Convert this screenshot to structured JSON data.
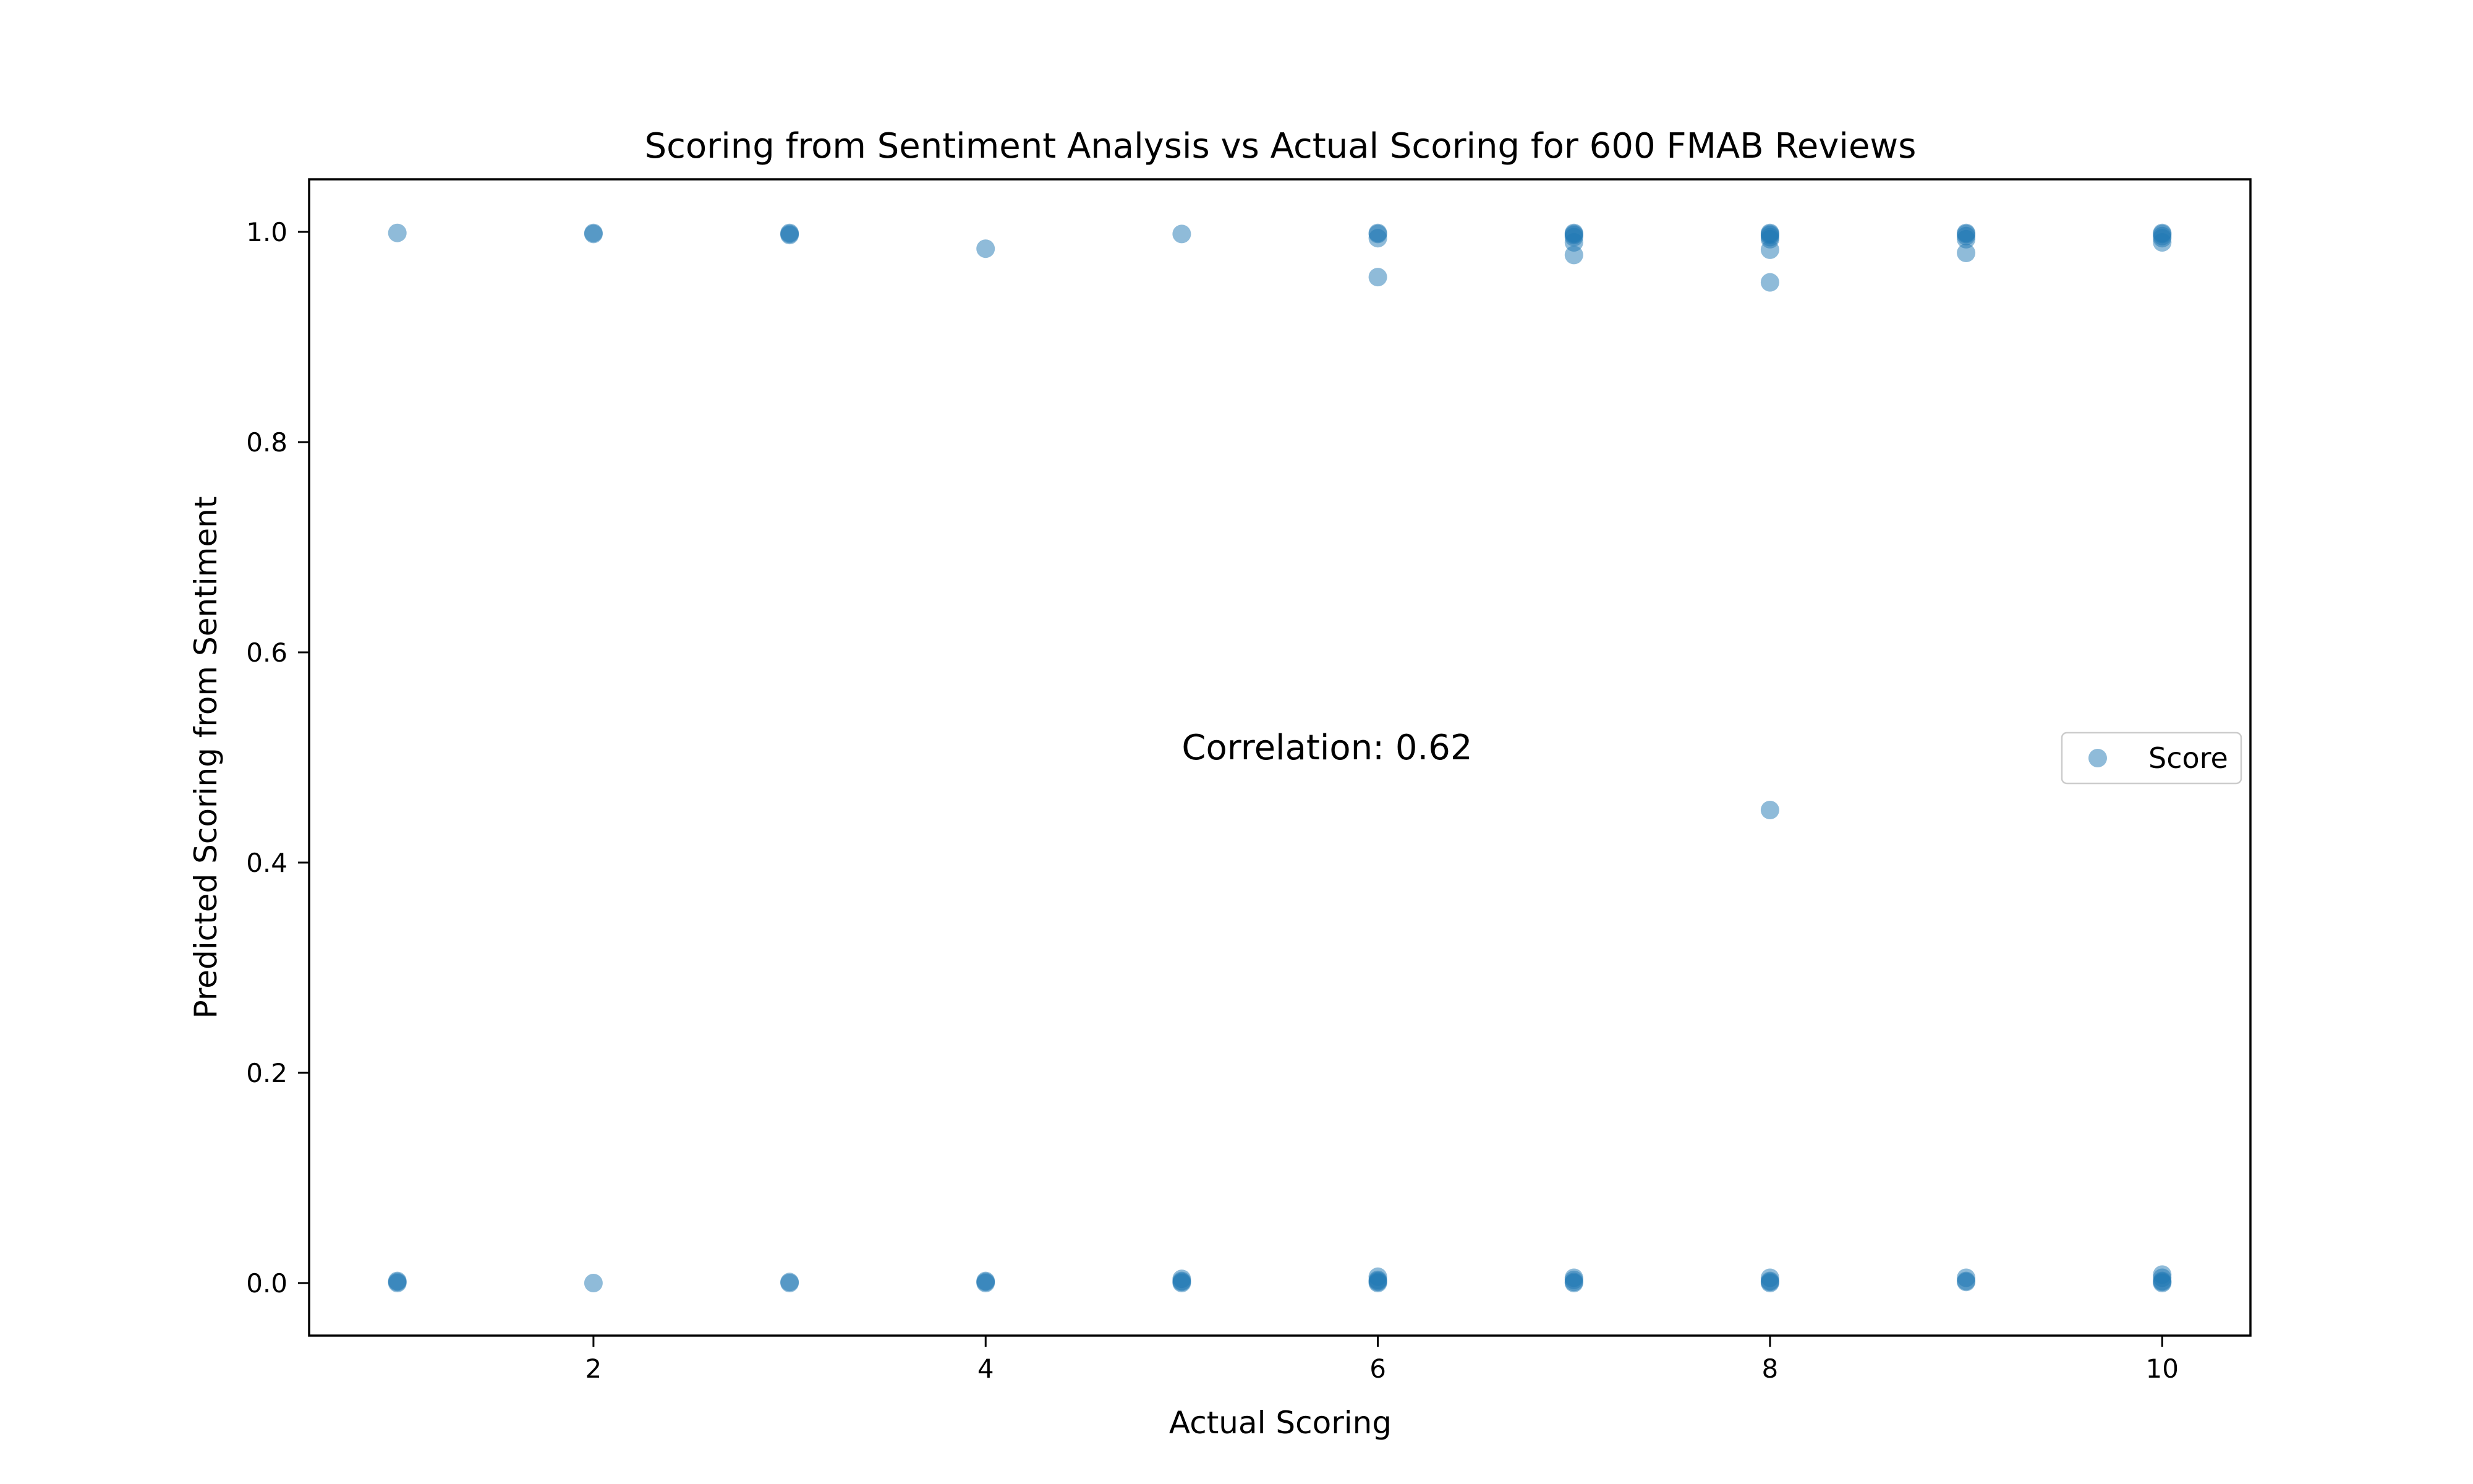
{
  "chart_data": {
    "type": "scatter",
    "title": "Scoring from Sentiment Analysis vs Actual Scoring for 600 FMAB Reviews",
    "xlabel": "Actual Scoring",
    "ylabel": "Predicted Scoring from Sentiment",
    "xlim": [
      0.55,
      10.45
    ],
    "ylim": [
      -0.05,
      1.05
    ],
    "x_ticks": [
      2,
      4,
      6,
      8,
      10
    ],
    "y_ticks": [
      0.0,
      0.2,
      0.4,
      0.6,
      0.8,
      1.0
    ],
    "x_tick_labels": [
      "2",
      "4",
      "6",
      "8",
      "10"
    ],
    "y_tick_labels": [
      "0.0",
      "0.2",
      "0.4",
      "0.6",
      "0.8",
      "1.0"
    ],
    "grid": false,
    "legend_placement": "center-right",
    "annotation": {
      "text": "Correlation: 0.62",
      "x": 5.0,
      "y": 0.51
    },
    "series": [
      {
        "name": "Score",
        "color": "#1f77b4",
        "alpha": 0.5,
        "points": [
          [
            1,
            0.999
          ],
          [
            1,
            0.001
          ],
          [
            1,
            0.0
          ],
          [
            1,
            0.002
          ],
          [
            2,
            0.999
          ],
          [
            2,
            0.998
          ],
          [
            2,
            0.0
          ],
          [
            3,
            0.999
          ],
          [
            3,
            0.998
          ],
          [
            3,
            0.997
          ],
          [
            3,
            0.001
          ],
          [
            3,
            0.0
          ],
          [
            4,
            0.984
          ],
          [
            4,
            0.001
          ],
          [
            4,
            0.0
          ],
          [
            4,
            0.002
          ],
          [
            5,
            0.998
          ],
          [
            5,
            0.004
          ],
          [
            5,
            0.002
          ],
          [
            5,
            0.0
          ],
          [
            5,
            0.001
          ],
          [
            6,
            0.999
          ],
          [
            6,
            0.998
          ],
          [
            6,
            0.994
          ],
          [
            6,
            0.957
          ],
          [
            6,
            0.006
          ],
          [
            6,
            0.003
          ],
          [
            6,
            0.001
          ],
          [
            6,
            0.0
          ],
          [
            6,
            0.002
          ],
          [
            7,
            0.999
          ],
          [
            7,
            0.998
          ],
          [
            7,
            0.997
          ],
          [
            7,
            0.995
          ],
          [
            7,
            0.99
          ],
          [
            7,
            0.978
          ],
          [
            7,
            0.005
          ],
          [
            7,
            0.003
          ],
          [
            7,
            0.001
          ],
          [
            7,
            0.0
          ],
          [
            8,
            0.999
          ],
          [
            8,
            0.998
          ],
          [
            8,
            0.997
          ],
          [
            8,
            0.995
          ],
          [
            8,
            0.993
          ],
          [
            8,
            0.983
          ],
          [
            8,
            0.952
          ],
          [
            8,
            0.45
          ],
          [
            8,
            0.005
          ],
          [
            8,
            0.002
          ],
          [
            8,
            0.001
          ],
          [
            8,
            0.0
          ],
          [
            9,
            0.999
          ],
          [
            9,
            0.998
          ],
          [
            9,
            0.996
          ],
          [
            9,
            0.993
          ],
          [
            9,
            0.98
          ],
          [
            9,
            0.005
          ],
          [
            9,
            0.002
          ],
          [
            9,
            0.001
          ],
          [
            10,
            0.999
          ],
          [
            10,
            0.998
          ],
          [
            10,
            0.996
          ],
          [
            10,
            0.994
          ],
          [
            10,
            0.99
          ],
          [
            10,
            0.008
          ],
          [
            10,
            0.005
          ],
          [
            10,
            0.002
          ],
          [
            10,
            0.001
          ],
          [
            10,
            0.0
          ]
        ]
      }
    ]
  }
}
